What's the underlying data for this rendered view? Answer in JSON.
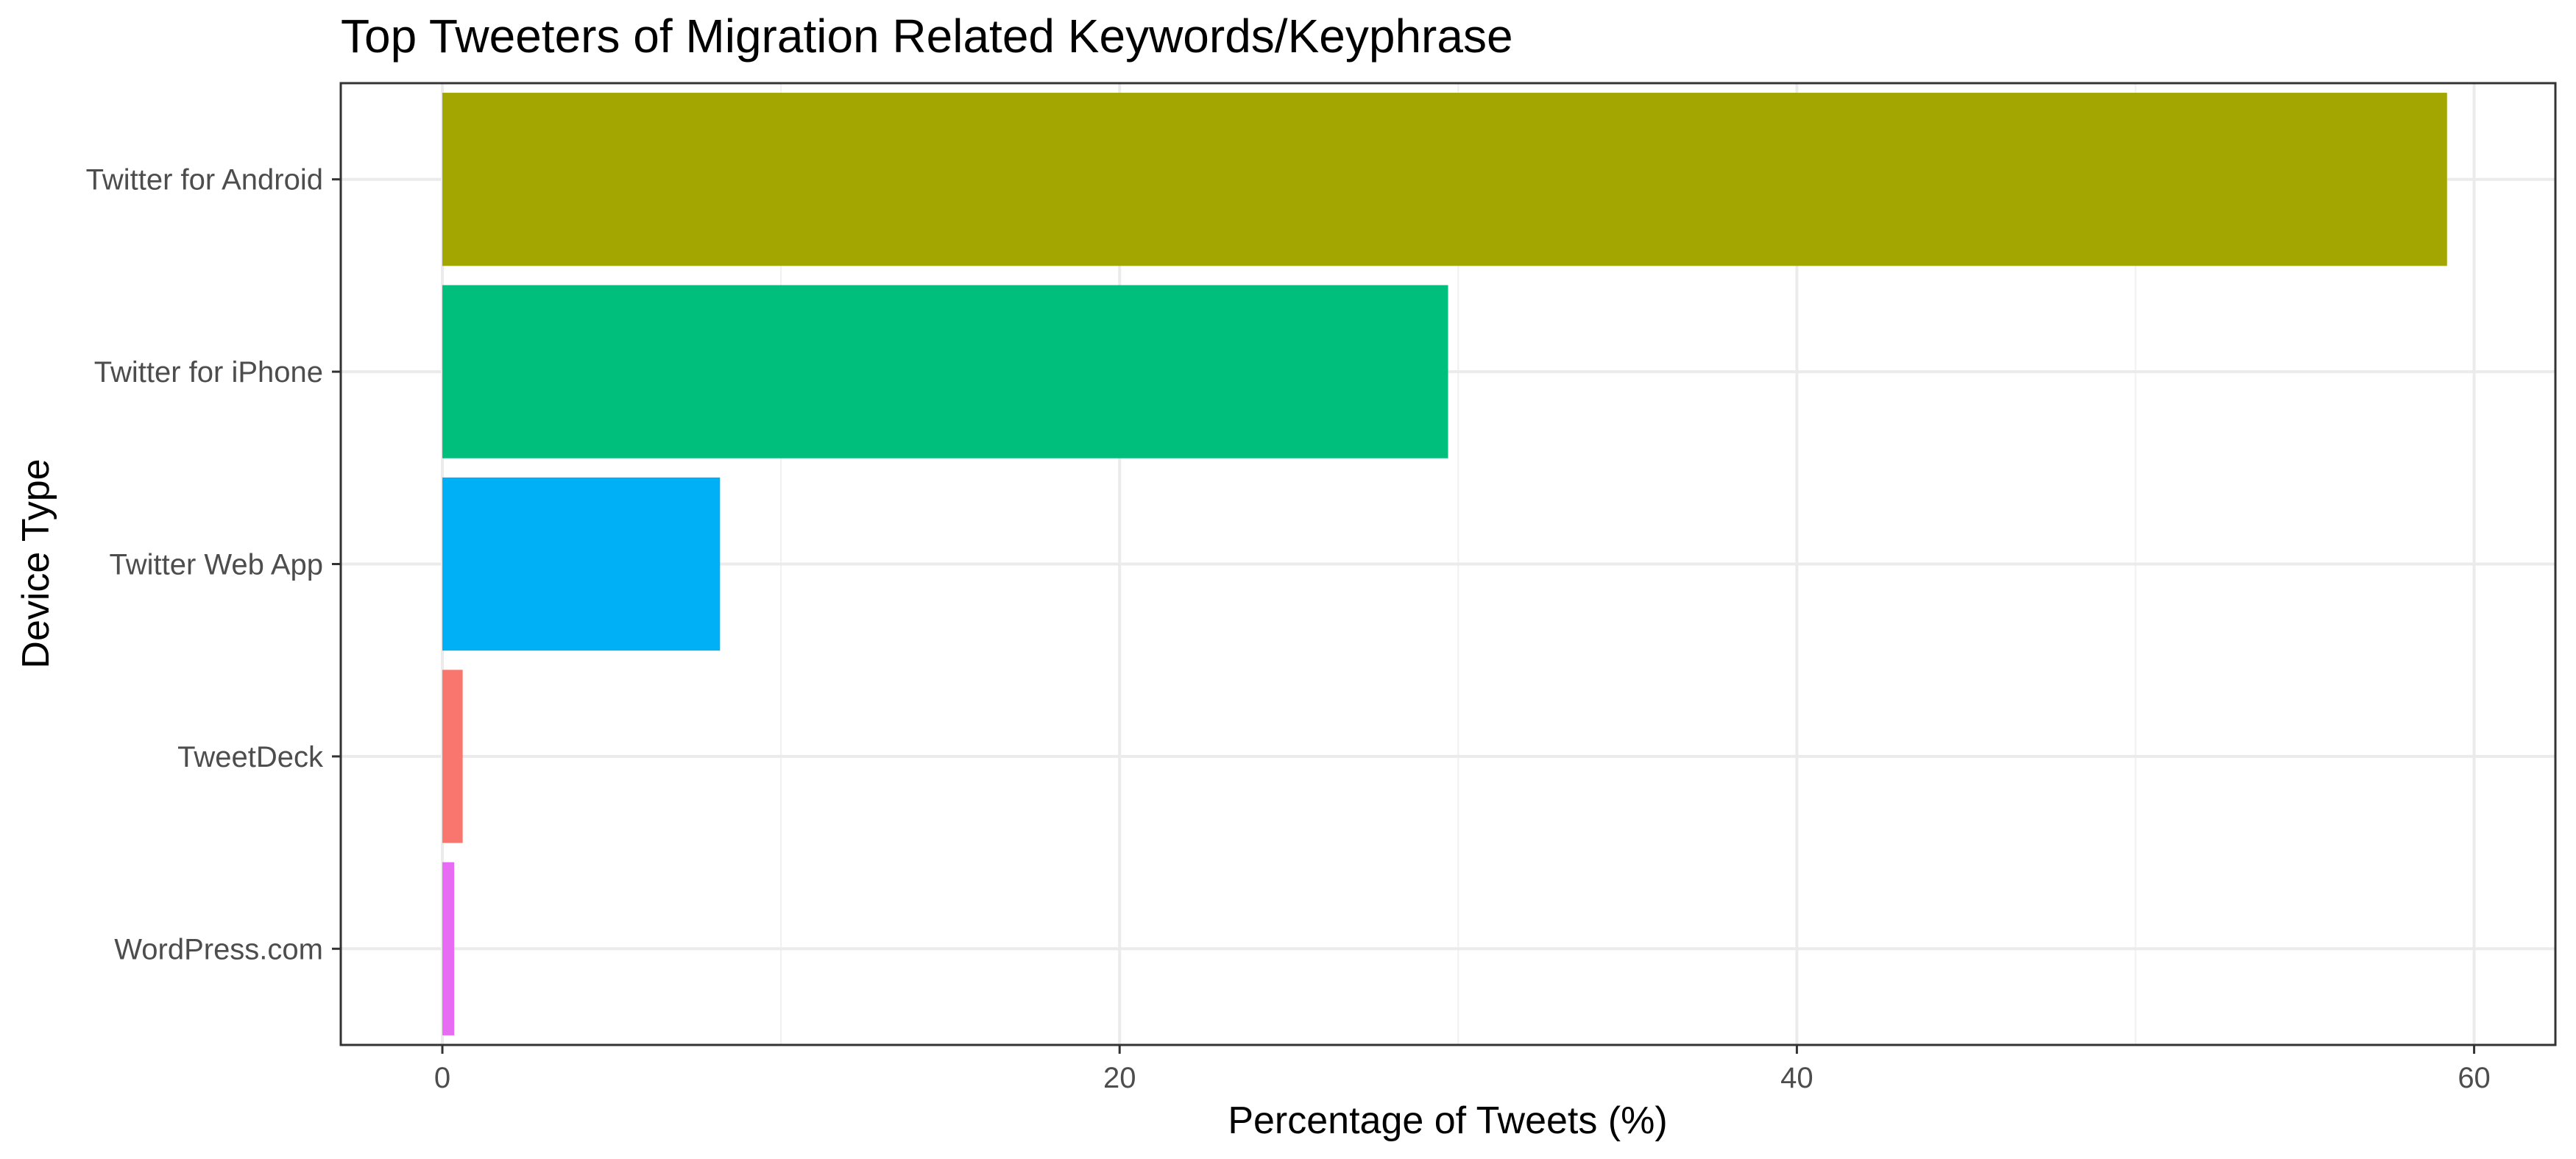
{
  "chart_data": {
    "type": "bar",
    "orientation": "horizontal",
    "title": "Top Tweeters of Migration Related Keywords/Keyphrase",
    "xlabel": "Percentage of Tweets (%)",
    "ylabel": "Device Type",
    "categories": [
      "Twitter for Android",
      "Twitter for iPhone",
      "Twitter Web App",
      "TweetDeck",
      "WordPress.com"
    ],
    "values": [
      59.2,
      29.7,
      8.2,
      0.6,
      0.35
    ],
    "colors": [
      "#A3A500",
      "#00BF7D",
      "#00B0F6",
      "#F8766D",
      "#E76BF3"
    ],
    "xlim": [
      -3.0,
      62.4
    ],
    "xticks": [
      "0",
      "20",
      "40",
      "60"
    ],
    "xtick_values": [
      0,
      20,
      40,
      60
    ],
    "grid": true,
    "legend": "none"
  }
}
